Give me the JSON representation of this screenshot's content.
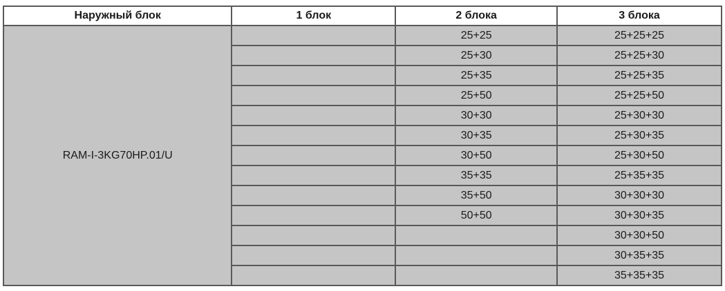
{
  "table": {
    "headers": [
      "Наружный блок",
      "1 блок",
      "2 блока",
      "3 блока"
    ],
    "outdoor_unit": "RAM-I-3KG70HP.01/U",
    "rows": [
      {
        "one": "",
        "two": "25+25",
        "three": "25+25+25"
      },
      {
        "one": "",
        "two": "25+30",
        "three": "25+25+30"
      },
      {
        "one": "",
        "two": "25+35",
        "three": "25+25+35"
      },
      {
        "one": "",
        "two": "25+50",
        "three": "25+25+50"
      },
      {
        "one": "",
        "two": "30+30",
        "three": "25+30+30"
      },
      {
        "one": "",
        "two": "30+35",
        "three": "25+30+35"
      },
      {
        "one": "",
        "two": "30+50",
        "three": "25+30+50"
      },
      {
        "one": "",
        "two": "35+35",
        "three": "25+35+35"
      },
      {
        "one": "",
        "two": "35+50",
        "three": "30+30+30"
      },
      {
        "one": "",
        "two": "50+50",
        "three": "30+30+35"
      },
      {
        "one": "",
        "two": "",
        "three": "30+30+50"
      },
      {
        "one": "",
        "two": "",
        "three": "30+35+35"
      },
      {
        "one": "",
        "two": "",
        "three": "35+35+35"
      }
    ],
    "colors": {
      "cell_bg": "#c5c5c5",
      "header_bg": "#ffffff",
      "border": "#595959",
      "text": "#1a1a1a"
    }
  }
}
